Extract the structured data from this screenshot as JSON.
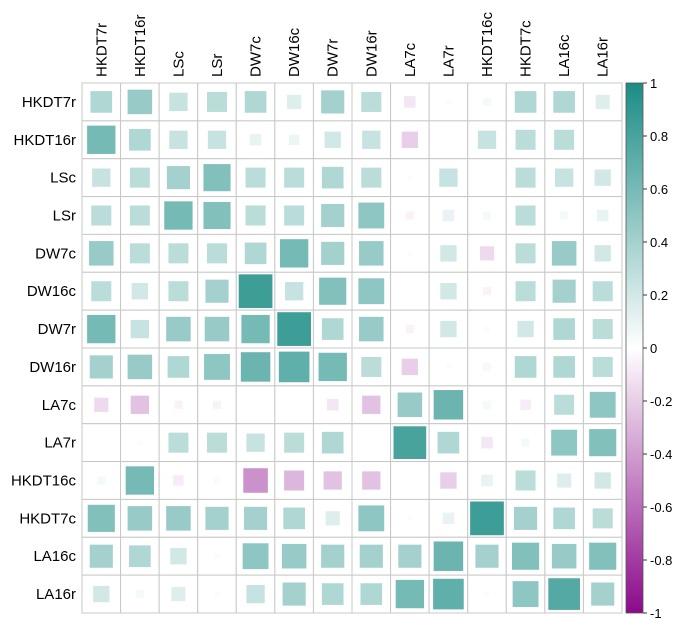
{
  "chart_data": {
    "type": "corrplot",
    "columns": [
      "HKDT7r",
      "HKDT16r",
      "LSc",
      "LSr",
      "DW7c",
      "DW16c",
      "DW7r",
      "DW16r",
      "LA7c",
      "LA7r",
      "HKDT16c",
      "HKDT7c",
      "LA16c",
      "LA16r"
    ],
    "rows": [
      "HKDT7r",
      "HKDT16r",
      "LSc",
      "LSr",
      "DW7c",
      "DW16c",
      "DW7r",
      "DW16r",
      "LA7c",
      "LA7r",
      "HKDT16c",
      "HKDT7c",
      "LA16c",
      "LA16r"
    ],
    "values": [
      [
        0.35,
        0.45,
        0.25,
        0.3,
        0.35,
        0.15,
        0.4,
        0.3,
        -0.1,
        0.02,
        0.05,
        0.35,
        0.35,
        0.15
      ],
      [
        0.6,
        0.35,
        0.25,
        0.25,
        0.1,
        0.08,
        0.2,
        0.25,
        -0.2,
        0,
        0.25,
        0.3,
        0.3,
        0.01
      ],
      [
        0.25,
        0.3,
        0.4,
        0.55,
        0.3,
        0.3,
        0.35,
        0.3,
        0.02,
        0.25,
        0.01,
        0.3,
        0.25,
        0.2
      ],
      [
        0.3,
        0.3,
        0.6,
        0.55,
        0.3,
        0.3,
        0.4,
        0.5,
        -0.05,
        0.1,
        0.05,
        0.3,
        0.05,
        0.1
      ],
      [
        0.45,
        0.3,
        0.3,
        0.3,
        0.35,
        0.6,
        0.4,
        0.45,
        0.02,
        0.2,
        -0.15,
        0.3,
        0.45,
        0.2
      ],
      [
        0.3,
        0.2,
        0.3,
        0.4,
        0.85,
        0.25,
        0.55,
        0.5,
        0.01,
        0.2,
        -0.05,
        0.3,
        0.4,
        0.3
      ],
      [
        0.6,
        0.25,
        0.45,
        0.45,
        0.6,
        0.85,
        0.35,
        0.45,
        -0.05,
        0.2,
        -0.02,
        0.2,
        0.35,
        0.3
      ],
      [
        0.4,
        0.45,
        0.35,
        0.5,
        0.65,
        0.7,
        0.6,
        0.3,
        -0.2,
        0.02,
        0.05,
        0.35,
        0.35,
        0.3
      ],
      [
        -0.15,
        -0.25,
        -0.05,
        -0.05,
        0,
        0,
        -0.1,
        -0.25,
        0.45,
        0.65,
        0.05,
        -0.08,
        0.3,
        0.5
      ],
      [
        0,
        0.02,
        0.3,
        0.3,
        0.25,
        0.3,
        0.35,
        0,
        0.8,
        0.35,
        -0.1,
        0.05,
        0.5,
        0.55
      ],
      [
        0.05,
        0.6,
        -0.08,
        0.03,
        -0.45,
        -0.3,
        -0.25,
        -0.25,
        0.01,
        -0.2,
        0.1,
        0.3,
        0.15,
        0.2
      ],
      [
        0.55,
        0.45,
        0.45,
        0.4,
        0.4,
        0.35,
        0.15,
        0.5,
        0.02,
        0.1,
        0.85,
        0.4,
        0.35,
        0.3
      ],
      [
        0.4,
        0.35,
        0.2,
        0.02,
        0.5,
        0.45,
        0.4,
        0.4,
        0.4,
        0.65,
        0.4,
        0.55,
        0.45,
        0.55
      ],
      [
        0.2,
        0.05,
        0.15,
        0.02,
        0.25,
        0.4,
        0.35,
        0.35,
        0.6,
        0.7,
        0.02,
        0.5,
        0.75,
        0.4
      ]
    ],
    "colorscale": [
      "#8b0a8b",
      "#ffffff",
      "#1b8c85"
    ],
    "clim": [
      -1,
      1
    ],
    "cticks": [
      -1,
      -0.8,
      -0.6,
      -0.4,
      -0.2,
      0,
      0.2,
      0.4,
      0.6,
      0.8,
      1
    ]
  }
}
